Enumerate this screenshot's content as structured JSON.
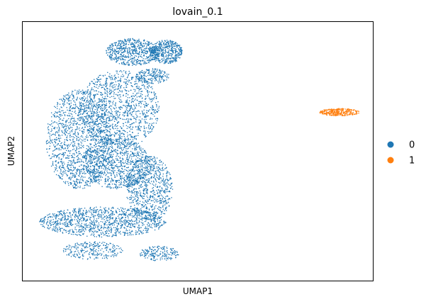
{
  "chart_data": {
    "type": "scatter",
    "title": "lovain_0.1",
    "xlabel": "UMAP1",
    "ylabel": "UMAP2",
    "ticks": "none",
    "grid": false,
    "legend_position": "right",
    "point_size_note": "small dense dots",
    "series": [
      {
        "name": "0",
        "color": "#1f77b4",
        "description": "large cluster",
        "regions": [
          {
            "cx": 0.12,
            "cy": 0.22,
            "rx": 0.1,
            "ry": 0.33,
            "n": 1400
          },
          {
            "cx": 0.24,
            "cy": 0.42,
            "rx": 0.12,
            "ry": 0.26,
            "n": 1200
          },
          {
            "cx": 0.23,
            "cy": 0.06,
            "rx": 0.1,
            "ry": 0.17,
            "n": 900
          },
          {
            "cx": 0.19,
            "cy": -0.33,
            "rx": 0.19,
            "ry": 0.1,
            "n": 1100
          },
          {
            "cx": 0.33,
            "cy": -0.11,
            "rx": 0.07,
            "ry": 0.22,
            "n": 800
          },
          {
            "cx": 0.28,
            "cy": 0.8,
            "rx": 0.08,
            "ry": 0.09,
            "n": 650
          },
          {
            "cx": 0.38,
            "cy": 0.8,
            "rx": 0.05,
            "ry": 0.08,
            "n": 450
          },
          {
            "cx": 0.34,
            "cy": 0.64,
            "rx": 0.05,
            "ry": 0.05,
            "n": 200
          },
          {
            "cx": 0.16,
            "cy": -0.52,
            "rx": 0.09,
            "ry": 0.06,
            "n": 250
          },
          {
            "cx": 0.36,
            "cy": -0.54,
            "rx": 0.06,
            "ry": 0.05,
            "n": 180
          }
        ]
      },
      {
        "name": "1",
        "color": "#ff7f0e",
        "description": "small isolated cluster",
        "regions": [
          {
            "cx": 0.9,
            "cy": 0.4,
            "rx": 0.06,
            "ry": 0.025,
            "n": 320
          }
        ]
      }
    ]
  }
}
